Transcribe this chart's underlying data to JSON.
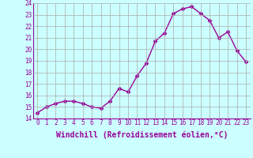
{
  "x": [
    0,
    1,
    2,
    3,
    4,
    5,
    6,
    7,
    8,
    9,
    10,
    11,
    12,
    13,
    14,
    15,
    16,
    17,
    18,
    19,
    20,
    21,
    22,
    23
  ],
  "y": [
    14.5,
    15.0,
    15.3,
    15.5,
    15.5,
    15.3,
    15.0,
    14.9,
    15.5,
    16.6,
    16.3,
    17.7,
    18.8,
    20.7,
    21.4,
    23.1,
    23.5,
    23.7,
    23.1,
    22.5,
    21.0,
    21.5,
    19.9,
    18.9
  ],
  "line_color": "#990099",
  "marker": "D",
  "marker_size": 2.5,
  "bg_color": "#ccffff",
  "grid_color": "#aaaaaa",
  "xlabel": "Windchill (Refroidissement éolien,°C)",
  "xlabel_color": "#990099",
  "tick_color": "#990099",
  "ylim": [
    14,
    24
  ],
  "xlim_min": -0.5,
  "xlim_max": 23.5,
  "yticks": [
    14,
    15,
    16,
    17,
    18,
    19,
    20,
    21,
    22,
    23,
    24
  ],
  "xticks": [
    0,
    1,
    2,
    3,
    4,
    5,
    6,
    7,
    8,
    9,
    10,
    11,
    12,
    13,
    14,
    15,
    16,
    17,
    18,
    19,
    20,
    21,
    22,
    23
  ],
  "tick_fontsize": 5.5,
  "xlabel_fontsize": 7.0,
  "line_width": 1.0
}
